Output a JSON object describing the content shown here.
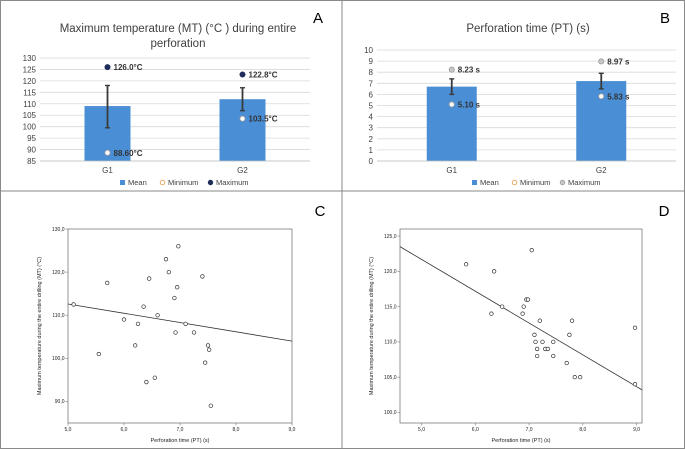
{
  "colors": {
    "bar": "#4a8fd6",
    "max_marker": "#1f2d5a",
    "min_marker": "#ffffff",
    "grid": "#d9d9d9"
  },
  "chart_data": [
    {
      "panel": "A",
      "type": "bar",
      "title_lines": [
        "Maximum temperature (MT) (°C ) during entire",
        "perforation"
      ],
      "categories": [
        "G1",
        "G2"
      ],
      "series": [
        {
          "name": "Mean",
          "values": [
            109,
            112
          ]
        }
      ],
      "error_bars": [
        [
          99.5,
          118
        ],
        [
          107,
          117
        ]
      ],
      "minimum": [
        88.6,
        103.5
      ],
      "maximum": [
        126.0,
        122.8
      ],
      "min_labels": [
        "88.60°C",
        "103.5°C"
      ],
      "max_labels": [
        "126.0°C",
        "122.8°C"
      ],
      "ylim": [
        85,
        130
      ],
      "yticks": [
        85,
        90,
        95,
        100,
        105,
        110,
        115,
        120,
        125,
        130
      ],
      "legend": [
        "Mean",
        "Minimum",
        "Maximum"
      ],
      "legend_position": "bottom",
      "grid": true
    },
    {
      "panel": "B",
      "type": "bar",
      "title_lines": [
        "Perforation time (PT) (s)"
      ],
      "categories": [
        "G1",
        "G2"
      ],
      "series": [
        {
          "name": "Mean",
          "values": [
            6.7,
            7.2
          ]
        }
      ],
      "error_bars": [
        [
          6.0,
          7.4
        ],
        [
          6.5,
          7.9
        ]
      ],
      "minimum": [
        5.1,
        5.83
      ],
      "maximum": [
        8.23,
        8.97
      ],
      "min_labels": [
        "5.10 s",
        "5.83 s"
      ],
      "max_labels": [
        "8.23 s",
        "8.97 s"
      ],
      "ylim": [
        0,
        10
      ],
      "yticks": [
        0,
        1,
        2,
        3,
        4,
        5,
        6,
        7,
        8,
        9,
        10
      ],
      "legend": [
        "Mean",
        "Minimum",
        "Maximum"
      ],
      "legend_position": "bottom",
      "grid": true
    },
    {
      "panel": "C",
      "type": "scatter",
      "xlabel": "Perforation time (PT) (s)",
      "ylabel": "Maximum temperature during the entire drilling (MT) (°C)",
      "xlim": [
        5.0,
        9.0
      ],
      "ylim": [
        85,
        130
      ],
      "xticks": [
        "5,0",
        "6,0",
        "7,0",
        "8,0",
        "9,0"
      ],
      "yticks": [
        "90,0",
        "100,0",
        "110,0",
        "120,0",
        "130,0"
      ],
      "x": [
        5.1,
        5.55,
        5.7,
        6.0,
        6.2,
        6.25,
        6.35,
        6.4,
        6.45,
        6.55,
        6.6,
        6.75,
        6.8,
        6.9,
        6.92,
        6.95,
        6.97,
        7.1,
        7.25,
        7.4,
        7.45,
        7.5,
        7.52,
        7.55
      ],
      "y": [
        112.5,
        101,
        117.5,
        109,
        103,
        108,
        112,
        94.5,
        118.5,
        95.5,
        110,
        123,
        120,
        114,
        106,
        116.5,
        126,
        108,
        106,
        119,
        99,
        103,
        102,
        89
      ],
      "fit_line": {
        "x": [
          5.0,
          9.0
        ],
        "y": [
          112.6,
          104
        ]
      }
    },
    {
      "panel": "D",
      "type": "scatter",
      "xlabel": "Perforation time (PT) (s)",
      "ylabel": "Maximum temperature during the entire drilling (MT) (°C)",
      "xlim": [
        4.6,
        9.1
      ],
      "ylim": [
        98.5,
        126
      ],
      "xticks": [
        "5,0",
        "6,0",
        "7,0",
        "8,0",
        "9,0"
      ],
      "yticks": [
        "100,0",
        "105,0",
        "110,0",
        "115,0",
        "120,0",
        "125,0"
      ],
      "x": [
        5.83,
        6.3,
        6.35,
        6.5,
        6.88,
        6.9,
        6.95,
        6.98,
        7.05,
        7.1,
        7.12,
        7.15,
        7.15,
        7.2,
        7.25,
        7.3,
        7.35,
        7.45,
        7.45,
        7.7,
        7.75,
        7.8,
        7.85,
        7.95,
        8.97,
        8.97
      ],
      "y": [
        121,
        114,
        120,
        115,
        114,
        115,
        116,
        116,
        123,
        111,
        110,
        109,
        108,
        113,
        110,
        109,
        109,
        110,
        108,
        107,
        111,
        113,
        105,
        105,
        112,
        104
      ],
      "fit_line": {
        "x": [
          4.6,
          9.1
        ],
        "y": [
          123.5,
          103.2
        ]
      }
    }
  ]
}
